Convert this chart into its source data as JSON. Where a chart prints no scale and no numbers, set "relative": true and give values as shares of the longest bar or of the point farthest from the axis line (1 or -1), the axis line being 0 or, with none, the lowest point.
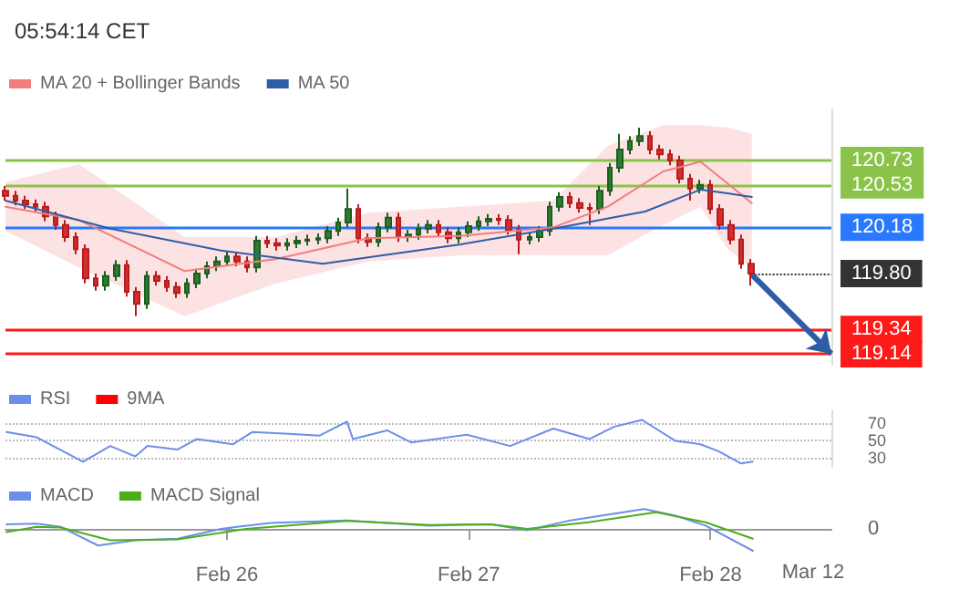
{
  "chart_data": [
    {
      "type": "candlestick",
      "title": "05:54:14 CET",
      "legend": "top left",
      "tick_labels": false,
      "marker": "none",
      "xlim": [
        "--02-25T02:00",
        "--02-28T12:00"
      ],
      "ylim": [
        119.05,
        121.15
      ],
      "x": [
        "--02-25T02:00",
        "--02-25T03:00",
        "--02-25T04:00",
        "--02-25T05:00",
        "--02-25T06:00",
        "--02-25T07:00",
        "--02-25T08:00",
        "--02-25T09:00",
        "--02-25T10:00",
        "--02-25T11:00",
        "--02-25T12:00",
        "--02-25T13:00",
        "--02-25T14:00",
        "--02-25T15:00",
        "--02-25T16:00",
        "--02-25T17:00",
        "--02-25T18:00",
        "--02-25T19:00",
        "--02-25T20:00",
        "--02-25T21:00",
        "--02-25T22:00",
        "--02-25T23:00",
        "--02-26T00:00",
        "--02-26T01:00",
        "--02-26T02:00",
        "--02-26T03:00",
        "--02-26T04:00",
        "--02-26T05:00",
        "--02-26T06:00",
        "--02-26T07:00",
        "--02-26T08:00",
        "--02-26T09:00",
        "--02-26T10:00",
        "--02-26T11:00",
        "--02-26T12:00",
        "--02-26T13:00",
        "--02-26T14:00",
        "--02-26T15:00",
        "--02-26T16:00",
        "--02-26T17:00",
        "--02-26T18:00",
        "--02-26T19:00",
        "--02-26T20:00",
        "--02-26T21:00",
        "--02-26T22:00",
        "--02-26T23:00",
        "--02-27T00:00",
        "--02-27T01:00",
        "--02-27T02:00",
        "--02-27T03:00",
        "--02-27T04:00",
        "--02-27T05:00",
        "--02-27T06:00",
        "--02-27T07:00",
        "--02-27T08:00",
        "--02-27T09:00",
        "--02-27T10:00",
        "--02-27T11:00",
        "--02-27T12:00",
        "--02-27T13:00",
        "--02-27T14:00",
        "--02-27T15:00",
        "--02-27T16:00",
        "--02-27T17:00",
        "--02-27T18:00",
        "--02-27T19:00",
        "--02-27T20:00",
        "--02-27T21:00",
        "--02-27T22:00",
        "--02-27T23:00",
        "--02-28T00:00",
        "--02-28T01:00",
        "--02-28T02:00",
        "--02-28T03:00",
        "--02-28T04:00"
      ],
      "ohlc": [
        [
          120.48,
          120.52,
          120.4,
          120.44
        ],
        [
          120.44,
          120.48,
          120.36,
          120.4
        ],
        [
          120.4,
          120.44,
          120.33,
          120.37
        ],
        [
          120.37,
          120.41,
          120.31,
          120.35
        ],
        [
          120.35,
          120.39,
          120.23,
          120.27
        ],
        [
          120.27,
          120.31,
          120.16,
          120.2
        ],
        [
          120.2,
          120.24,
          120.06,
          120.1
        ],
        [
          120.1,
          120.14,
          119.96,
          120.0
        ],
        [
          120.0,
          120.04,
          119.72,
          119.76
        ],
        [
          119.76,
          119.8,
          119.66,
          119.7
        ],
        [
          119.7,
          119.82,
          119.66,
          119.78
        ],
        [
          119.78,
          119.91,
          119.74,
          119.87
        ],
        [
          119.87,
          119.91,
          119.61,
          119.65
        ],
        [
          119.65,
          119.69,
          119.45,
          119.55
        ],
        [
          119.55,
          119.82,
          119.51,
          119.78
        ],
        [
          119.78,
          119.82,
          119.7,
          119.74
        ],
        [
          119.74,
          119.78,
          119.65,
          119.69
        ],
        [
          119.69,
          119.73,
          119.6,
          119.64
        ],
        [
          119.64,
          119.76,
          119.6,
          119.72
        ],
        [
          119.72,
          119.84,
          119.68,
          119.8
        ],
        [
          119.8,
          119.9,
          119.76,
          119.86
        ],
        [
          119.86,
          119.94,
          119.82,
          119.9
        ],
        [
          119.9,
          119.98,
          119.86,
          119.94
        ],
        [
          119.94,
          119.98,
          119.86,
          119.9
        ],
        [
          119.9,
          119.94,
          119.81,
          119.85
        ],
        [
          119.85,
          120.11,
          119.81,
          120.07
        ],
        [
          120.07,
          120.11,
          120.01,
          120.05
        ],
        [
          120.05,
          120.09,
          119.99,
          120.03
        ],
        [
          120.03,
          120.09,
          119.99,
          120.05
        ],
        [
          120.05,
          120.11,
          120.01,
          120.07
        ],
        [
          120.07,
          120.12,
          120.03,
          120.08
        ],
        [
          120.08,
          120.13,
          120.04,
          120.09
        ],
        [
          120.09,
          120.19,
          120.05,
          120.15
        ],
        [
          120.15,
          120.26,
          120.11,
          120.22
        ],
        [
          120.22,
          120.5,
          120.18,
          120.33
        ],
        [
          120.33,
          120.37,
          120.05,
          120.09
        ],
        [
          120.09,
          120.13,
          120.02,
          120.06
        ],
        [
          120.06,
          120.22,
          120.02,
          120.18
        ],
        [
          120.18,
          120.3,
          120.14,
          120.26
        ],
        [
          120.26,
          120.3,
          120.06,
          120.1
        ],
        [
          120.1,
          120.16,
          120.06,
          120.12
        ],
        [
          120.12,
          120.21,
          120.08,
          120.17
        ],
        [
          120.17,
          120.24,
          120.13,
          120.2
        ],
        [
          120.2,
          120.24,
          120.1,
          120.14
        ],
        [
          120.14,
          120.18,
          120.05,
          120.09
        ],
        [
          120.09,
          120.18,
          120.05,
          120.14
        ],
        [
          120.14,
          120.23,
          120.1,
          120.19
        ],
        [
          120.19,
          120.27,
          120.15,
          120.23
        ],
        [
          120.23,
          120.29,
          120.19,
          120.25
        ],
        [
          120.25,
          120.29,
          120.2,
          120.24
        ],
        [
          120.24,
          120.28,
          120.12,
          120.16
        ],
        [
          120.16,
          120.2,
          119.96,
          120.08
        ],
        [
          120.08,
          120.14,
          120.04,
          120.1
        ],
        [
          120.1,
          120.19,
          120.06,
          120.15
        ],
        [
          120.15,
          120.39,
          120.11,
          120.35
        ],
        [
          120.35,
          120.47,
          120.31,
          120.43
        ],
        [
          120.43,
          120.47,
          120.34,
          120.38
        ],
        [
          120.38,
          120.42,
          120.3,
          120.34
        ],
        [
          120.34,
          120.38,
          120.2,
          120.33
        ],
        [
          120.33,
          120.52,
          120.29,
          120.48
        ],
        [
          120.48,
          120.71,
          120.44,
          120.67
        ],
        [
          120.67,
          120.95,
          120.63,
          120.82
        ],
        [
          120.82,
          120.93,
          120.78,
          120.89
        ],
        [
          120.89,
          121.0,
          120.85,
          120.93
        ],
        [
          120.93,
          120.97,
          120.78,
          120.82
        ],
        [
          120.82,
          120.86,
          120.74,
          120.78
        ],
        [
          120.78,
          120.82,
          120.69,
          120.73
        ],
        [
          120.73,
          120.77,
          120.54,
          120.58
        ],
        [
          120.58,
          120.62,
          120.4,
          120.5
        ],
        [
          120.5,
          120.57,
          120.46,
          120.53
        ],
        [
          120.53,
          120.57,
          120.29,
          120.33
        ],
        [
          120.33,
          120.37,
          120.16,
          120.2
        ],
        [
          120.2,
          120.24,
          120.04,
          120.08
        ],
        [
          120.08,
          120.12,
          119.84,
          119.88
        ],
        [
          119.88,
          119.92,
          119.7,
          119.8
        ]
      ],
      "series": [
        {
          "name": "MA 20 + Bollinger Bands",
          "type": "line",
          "color": "#f27d7d",
          "x": [
            "--02-25T02:00",
            "--02-25T09:18",
            "--02-25T19:48",
            "--02-26T04:54",
            "--02-26T14:00",
            "--02-26T23:12",
            "--02-27T08:24",
            "--02-27T13:48",
            "--02-27T19:18",
            "--02-27T23:00",
            "--02-28T01:42",
            "--02-28T04:06"
          ],
          "values": [
            120.35,
            120.24,
            119.82,
            119.92,
            120.09,
            120.11,
            120.18,
            120.35,
            120.64,
            120.72,
            120.54,
            120.38
          ],
          "upper": [
            120.55,
            120.7,
            120.1,
            120.1,
            120.3,
            120.35,
            120.4,
            120.85,
            121.02,
            121.02,
            121.0,
            120.95
          ],
          "lower": [
            120.15,
            119.85,
            119.45,
            119.72,
            119.9,
            119.95,
            119.95,
            119.95,
            120.2,
            120.35,
            120.0,
            119.85
          ]
        },
        {
          "name": "MA 50",
          "type": "line",
          "color": "#2e5da8",
          "x": [
            "--02-25T02:00",
            "--02-25T12:24",
            "--02-25T23:24",
            "--02-26T09:30",
            "--02-26T23:12",
            "--02-27T08:24",
            "--02-27T17:30",
            "--02-27T23:00",
            "--02-28T01:42",
            "--02-28T04:06"
          ],
          "values": [
            120.4,
            120.17,
            119.99,
            119.88,
            120.04,
            120.17,
            120.31,
            120.49,
            120.46,
            120.43
          ]
        }
      ],
      "ref_lines": [
        {
          "axis": "y",
          "value": 120.73,
          "label": "120.73",
          "color": "#8bc34a"
        },
        {
          "axis": "y",
          "value": 120.53,
          "label": "120.53",
          "color": "#8bc34a"
        },
        {
          "axis": "y",
          "value": 120.18,
          "label": "120.18",
          "color": "#2979ff"
        },
        {
          "axis": "y",
          "value": 119.8,
          "label": "119.80",
          "color": "#333333",
          "line_style": "dotted"
        },
        {
          "axis": "y",
          "value": 119.34,
          "label": "119.34",
          "color": "#ff1a1a"
        },
        {
          "axis": "y",
          "value": 119.14,
          "label": "119.14",
          "color": "#ff1a1a"
        }
      ]
    },
    {
      "type": "line",
      "legend": "top left",
      "tick_labels": "y",
      "grid": "y",
      "marker": "none",
      "xlim": [
        "--02-25T02:00",
        "--02-28T12:00"
      ],
      "ylim": [
        20,
        85
      ],
      "yticks": [
        30,
        50,
        70
      ],
      "series": [
        {
          "name": "RSI",
          "color": "#6b8fe8",
          "x": [
            "--02-25T02:06",
            "--02-25T05:06",
            "--02-25T09:42",
            "--02-25T12:24",
            "--02-25T14:54",
            "--02-25T16:06",
            "--02-25T19:06",
            "--02-25T21:00",
            "--02-26T00:36",
            "--02-26T02:30",
            "--02-26T06:06",
            "--02-26T09:12",
            "--02-26T11:54",
            "--02-26T12:30",
            "--02-26T15:54",
            "--02-26T18:18",
            "--02-26T23:48",
            "--02-27T04:06",
            "--02-27T08:24",
            "--02-27T12:00",
            "--02-27T14:24",
            "--02-27T17:12",
            "--02-27T20:30",
            "--02-27T23:00",
            "--02-28T00:48",
            "--02-28T03:00",
            "--02-28T04:12"
          ],
          "values": [
            60,
            54,
            26,
            44,
            32,
            44,
            40,
            52,
            46,
            60,
            58,
            56,
            72,
            52,
            62,
            48,
            57,
            44,
            64,
            52,
            66,
            74,
            50,
            46,
            38,
            24,
            26
          ]
        },
        {
          "name": "9MA",
          "color": "#ff0000"
        }
      ]
    },
    {
      "type": "line",
      "relative": true,
      "legend": "top left",
      "tick_labels": "x",
      "marker": "none",
      "xlim": [
        "--02-25T02:00",
        "--02-28T12:00"
      ],
      "xticks": [
        {
          "value": "--02-26",
          "label": "Feb 26"
        },
        {
          "value": "--02-27",
          "label": "Feb 27"
        },
        {
          "value": "--02-28",
          "label": "Feb 28"
        }
      ],
      "annotations": [
        "0",
        "Mar 12"
      ],
      "series": [
        {
          "name": "MACD",
          "color": "#6b8fe8",
          "x": [
            "--02-25T02:06",
            "--02-25T05:06",
            "--02-25T07:30",
            "--02-25T11:12",
            "--02-25T14:54",
            "--02-25T19:06",
            "--02-25T23:24",
            "--02-26T04:18",
            "--02-26T11:54",
            "--02-26T20:06",
            "--02-27T02:12",
            "--02-27T05:48",
            "--02-27T10:06",
            "--02-27T17:24",
            "--02-27T20:30",
            "--02-27T23:30",
            "--02-28T04:12"
          ],
          "values": [
            0.21,
            0.24,
            0.09,
            -0.76,
            -0.52,
            -0.45,
            0,
            0.27,
            0.39,
            0.15,
            0.21,
            -0.06,
            0.39,
            0.91,
            0.61,
            0.15,
            -1
          ]
        },
        {
          "name": "MACD Signal",
          "color": "#4caf1a",
          "x": [
            "--02-25T02:06",
            "--02-25T05:06",
            "--02-25T07:30",
            "--02-25T12:24",
            "--02-25T19:06",
            "--02-26T01:54",
            "--02-26T11:54",
            "--02-26T20:06",
            "--02-27T02:12",
            "--02-27T05:48",
            "--02-27T11:54",
            "--02-27T18:36",
            "--02-27T23:30",
            "--02-28T04:12"
          ],
          "values": [
            -0.15,
            0.09,
            0.06,
            -0.52,
            -0.48,
            0,
            0.36,
            0.18,
            0.21,
            0,
            0.3,
            0.76,
            0.3,
            -0.45
          ]
        }
      ]
    }
  ]
}
